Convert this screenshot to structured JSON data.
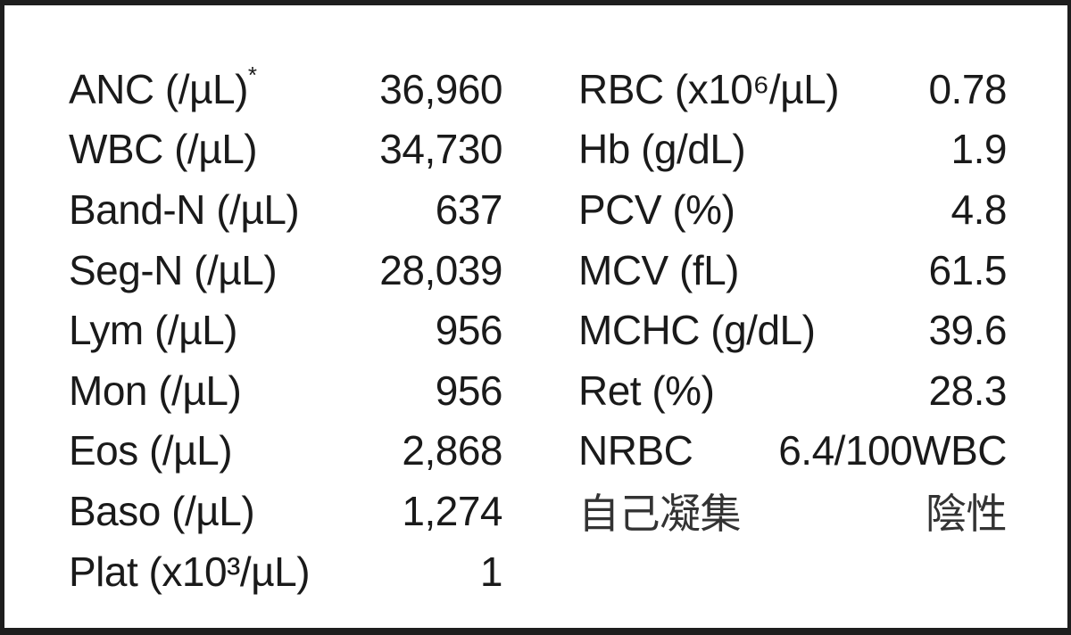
{
  "left_column": [
    {
      "label": "ANC (/µL)",
      "note": "*",
      "value": "36,960"
    },
    {
      "label": "WBC (/µL)",
      "value": "34,730"
    },
    {
      "label": "Band-N (/µL)",
      "value": "637"
    },
    {
      "label": "Seg-N (/µL)",
      "value": "28,039"
    },
    {
      "label": "Lym (/µL)",
      "value": "956"
    },
    {
      "label": "Mon (/µL)",
      "value": "956"
    },
    {
      "label": "Eos (/µL)",
      "value": "2,868"
    },
    {
      "label": "Baso (/µL)",
      "value": "1,274"
    },
    {
      "label": "Plat (x10³/µL)",
      "value": "1"
    }
  ],
  "right_column": [
    {
      "label": "RBC (x10⁶/µL)",
      "value": "0.78"
    },
    {
      "label": "Hb (g/dL)",
      "value": "1.9"
    },
    {
      "label": "PCV (%)",
      "value": "4.8"
    },
    {
      "label": "MCV (fL)",
      "value": "61.5"
    },
    {
      "label": "MCHC (g/dL)",
      "value": "39.6"
    },
    {
      "label": "Ret (%)",
      "value": "28.3"
    },
    {
      "label": "NRBC",
      "value": "6.4/100WBC"
    },
    {
      "label": "自己凝集",
      "value": "陰性"
    }
  ]
}
